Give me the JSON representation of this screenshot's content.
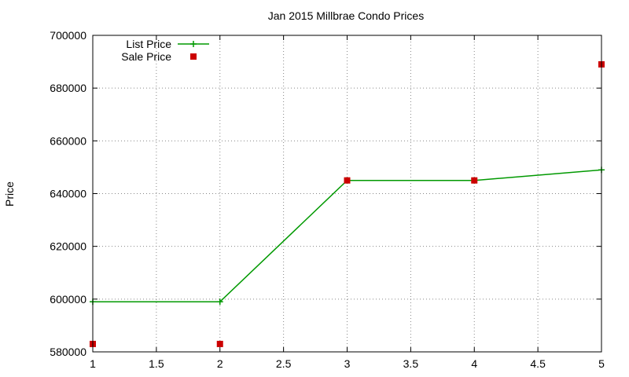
{
  "chart_data": {
    "type": "line",
    "title": "Jan 2015 Millbrae Condo Prices",
    "xlabel": "",
    "ylabel": "Price",
    "xlim": [
      1,
      5
    ],
    "ylim": [
      580000,
      700000
    ],
    "x_ticks": [
      "1",
      "1.5",
      "2",
      "2.5",
      "3",
      "3.5",
      "4",
      "4.5",
      "5"
    ],
    "y_ticks": [
      "580000",
      "600000",
      "620000",
      "640000",
      "660000",
      "680000",
      "700000"
    ],
    "grid": true,
    "legend_position": "top-left",
    "series": [
      {
        "name": "List Price",
        "style": "lines+points",
        "color": "#009900",
        "x": [
          1,
          2,
          3,
          4,
          5
        ],
        "y": [
          599000,
          599000,
          645000,
          645000,
          649000
        ]
      },
      {
        "name": "Sale Price",
        "style": "points",
        "color": "#cc0000",
        "x": [
          1,
          2,
          3,
          4,
          5
        ],
        "y": [
          583000,
          583000,
          645000,
          645000,
          689000
        ]
      }
    ]
  }
}
